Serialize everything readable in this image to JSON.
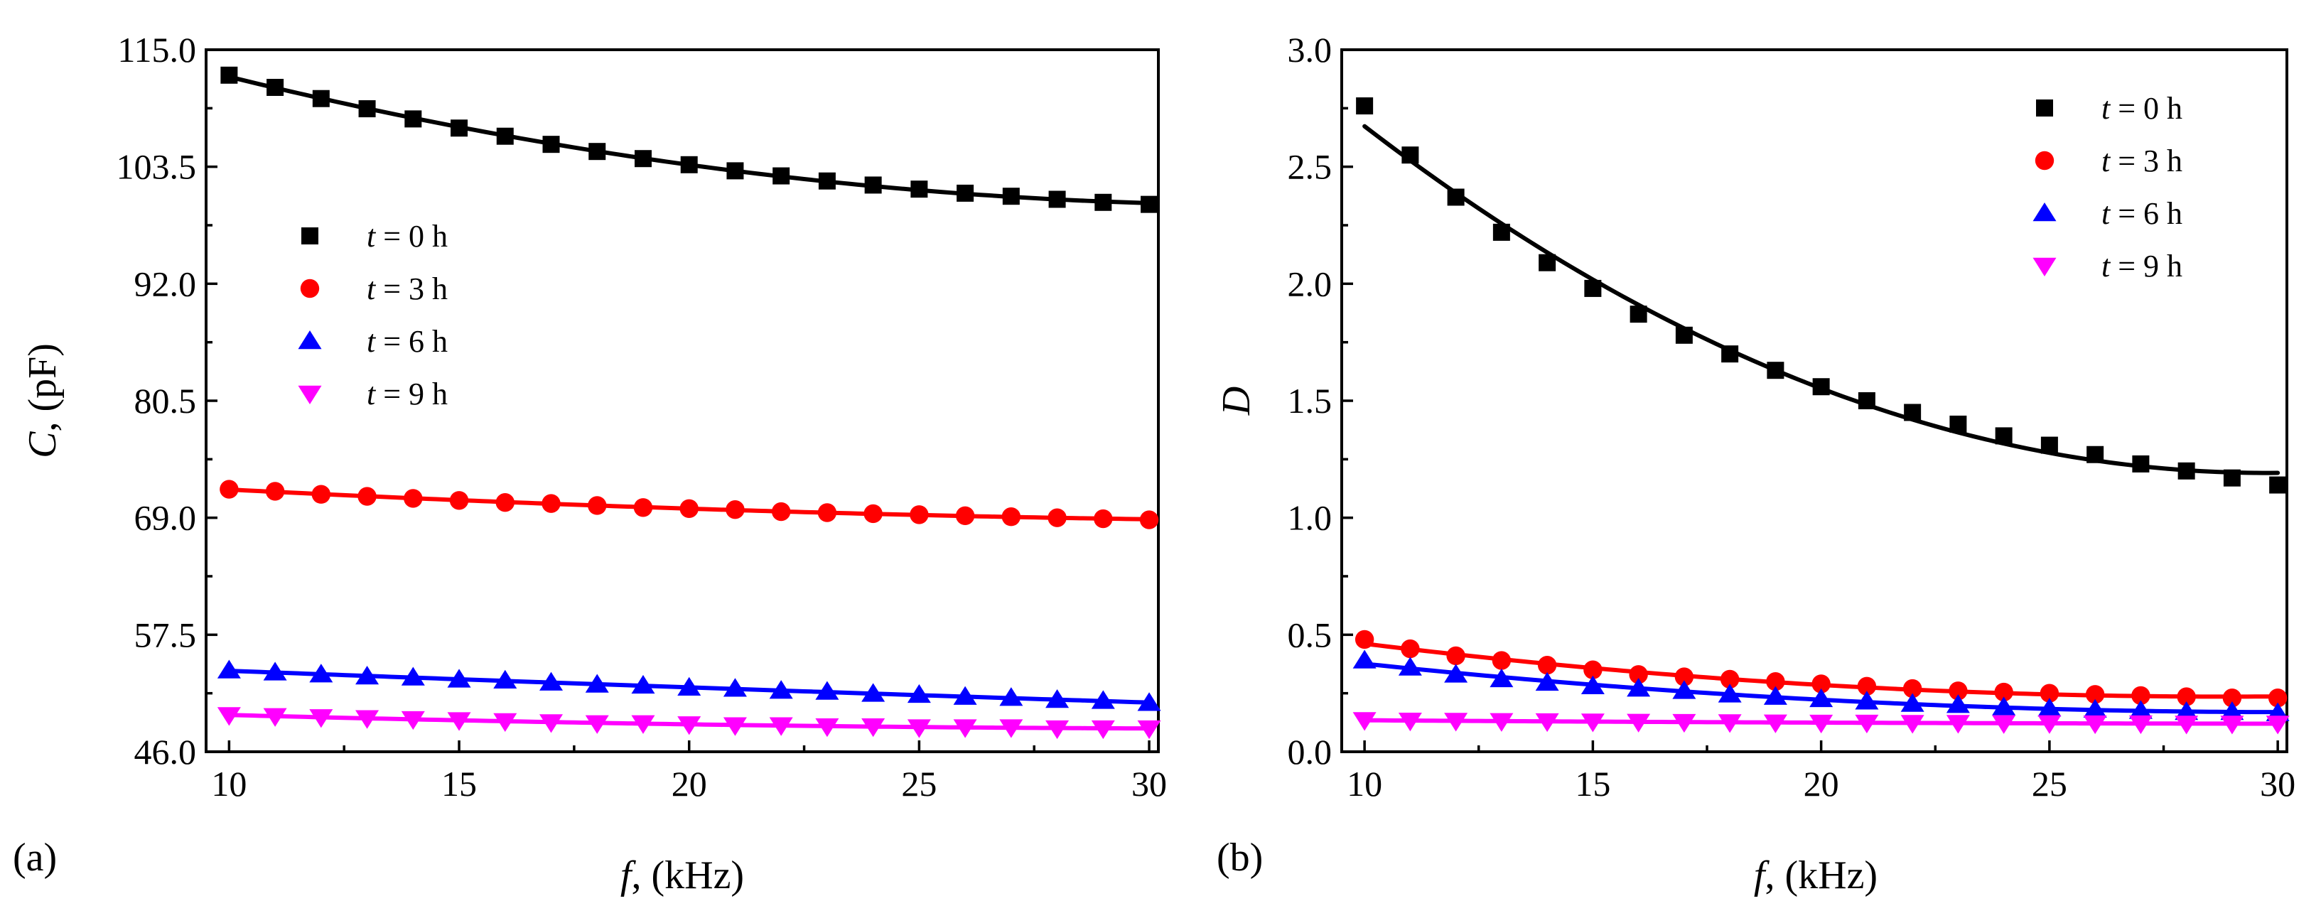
{
  "figure": {
    "panels": [
      {
        "label": "(a)"
      },
      {
        "label": "(b)"
      }
    ]
  },
  "chart_data": [
    {
      "type": "scatter",
      "panel_label": "(a)",
      "xlabel": {
        "var": "f",
        "unit": ", (kHz)"
      },
      "ylabel": {
        "var": "C",
        "unit": ", (pF)"
      },
      "xlim": [
        9.5,
        30.2
      ],
      "ylim": [
        46.0,
        115.0
      ],
      "x_ticks": [
        10,
        15,
        20,
        25,
        30
      ],
      "x_tick_labels": [
        "10",
        "15",
        "20",
        "25",
        "30"
      ],
      "y_ticks": [
        46.0,
        57.5,
        69.0,
        80.5,
        92.0,
        103.5,
        115.0
      ],
      "y_tick_labels": [
        "46.0",
        "57.5",
        "69.0",
        "80.5",
        "92.0",
        "103.5",
        "115.0"
      ],
      "legend_position": "center-left",
      "x": [
        10,
        11,
        12,
        13,
        14,
        15,
        16,
        17,
        18,
        19,
        20,
        21,
        22,
        23,
        24,
        25,
        26,
        27,
        28,
        29,
        30
      ],
      "series": [
        {
          "name": "t = 0 h",
          "label_var": "t",
          "label_rest": " = 0 h",
          "marker": "square",
          "color": "#000000",
          "values": [
            112.5,
            111.3,
            110.2,
            109.2,
            108.2,
            107.3,
            106.5,
            105.7,
            105.0,
            104.3,
            103.7,
            103.1,
            102.6,
            102.1,
            101.7,
            101.3,
            100.9,
            100.6,
            100.3,
            100.0,
            99.8
          ]
        },
        {
          "name": "t = 3 h",
          "label_var": "t",
          "label_rest": " = 3 h",
          "marker": "circle",
          "color": "#ff0000",
          "values": [
            71.8,
            71.6,
            71.3,
            71.1,
            70.9,
            70.7,
            70.5,
            70.4,
            70.2,
            70.0,
            69.9,
            69.8,
            69.6,
            69.5,
            69.4,
            69.3,
            69.2,
            69.1,
            69.0,
            68.9,
            68.8
          ]
        },
        {
          "name": "t = 6 h",
          "label_var": "t",
          "label_rest": " = 6 h",
          "marker": "triangle-up",
          "color": "#0000ff",
          "values": [
            54.0,
            53.8,
            53.6,
            53.4,
            53.3,
            53.1,
            53.0,
            52.8,
            52.6,
            52.5,
            52.3,
            52.2,
            52.0,
            51.9,
            51.7,
            51.6,
            51.4,
            51.3,
            51.1,
            51.0,
            50.8
          ]
        },
        {
          "name": "t = 9 h",
          "label_var": "t",
          "label_rest": " = 9 h",
          "marker": "triangle-down",
          "color": "#ff00ff",
          "values": [
            49.6,
            49.5,
            49.4,
            49.3,
            49.2,
            49.1,
            49.0,
            48.9,
            48.8,
            48.8,
            48.7,
            48.6,
            48.6,
            48.5,
            48.5,
            48.4,
            48.4,
            48.4,
            48.3,
            48.3,
            48.3
          ]
        }
      ]
    },
    {
      "type": "scatter",
      "panel_label": "(b)",
      "xlabel": {
        "var": "f",
        "unit": ", (kHz)"
      },
      "ylabel": {
        "var": "D",
        "unit": ""
      },
      "xlim": [
        9.5,
        30.2
      ],
      "ylim": [
        0.0,
        3.0
      ],
      "x_ticks": [
        10,
        15,
        20,
        25,
        30
      ],
      "x_tick_labels": [
        "10",
        "15",
        "20",
        "25",
        "30"
      ],
      "y_ticks": [
        0.0,
        0.5,
        1.0,
        1.5,
        2.0,
        2.5,
        3.0
      ],
      "y_tick_labels": [
        "0.0",
        "0.5",
        "1.0",
        "1.5",
        "2.0",
        "2.5",
        "3.0"
      ],
      "legend_position": "top-right",
      "x": [
        10,
        11,
        12,
        13,
        14,
        15,
        16,
        17,
        18,
        19,
        20,
        21,
        22,
        23,
        24,
        25,
        26,
        27,
        28,
        29,
        30
      ],
      "series": [
        {
          "name": "t = 0 h",
          "label_var": "t",
          "label_rest": " = 0 h",
          "marker": "square",
          "color": "#000000",
          "values": [
            2.76,
            2.55,
            2.37,
            2.22,
            2.09,
            1.98,
            1.87,
            1.78,
            1.7,
            1.63,
            1.56,
            1.5,
            1.45,
            1.4,
            1.35,
            1.31,
            1.27,
            1.23,
            1.2,
            1.17,
            1.14
          ]
        },
        {
          "name": "t = 3 h",
          "label_var": "t",
          "label_rest": " = 3 h",
          "marker": "circle",
          "color": "#ff0000",
          "values": [
            0.48,
            0.44,
            0.41,
            0.39,
            0.37,
            0.35,
            0.33,
            0.32,
            0.31,
            0.3,
            0.29,
            0.28,
            0.27,
            0.26,
            0.255,
            0.25,
            0.245,
            0.24,
            0.235,
            0.23,
            0.23
          ]
        },
        {
          "name": "t = 6 h",
          "label_var": "t",
          "label_rest": " = 6 h",
          "marker": "triangle-up",
          "color": "#0000ff",
          "values": [
            0.39,
            0.36,
            0.33,
            0.31,
            0.295,
            0.28,
            0.27,
            0.26,
            0.245,
            0.235,
            0.225,
            0.215,
            0.205,
            0.2,
            0.19,
            0.185,
            0.18,
            0.175,
            0.17,
            0.17,
            0.165
          ]
        },
        {
          "name": "t = 9 h",
          "label_var": "t",
          "label_rest": " = 9 h",
          "marker": "triangle-down",
          "color": "#ff00ff",
          "values": [
            0.135,
            0.133,
            0.132,
            0.131,
            0.13,
            0.129,
            0.128,
            0.127,
            0.126,
            0.125,
            0.124,
            0.124,
            0.123,
            0.123,
            0.122,
            0.122,
            0.121,
            0.121,
            0.12,
            0.12,
            0.12
          ]
        }
      ]
    }
  ]
}
